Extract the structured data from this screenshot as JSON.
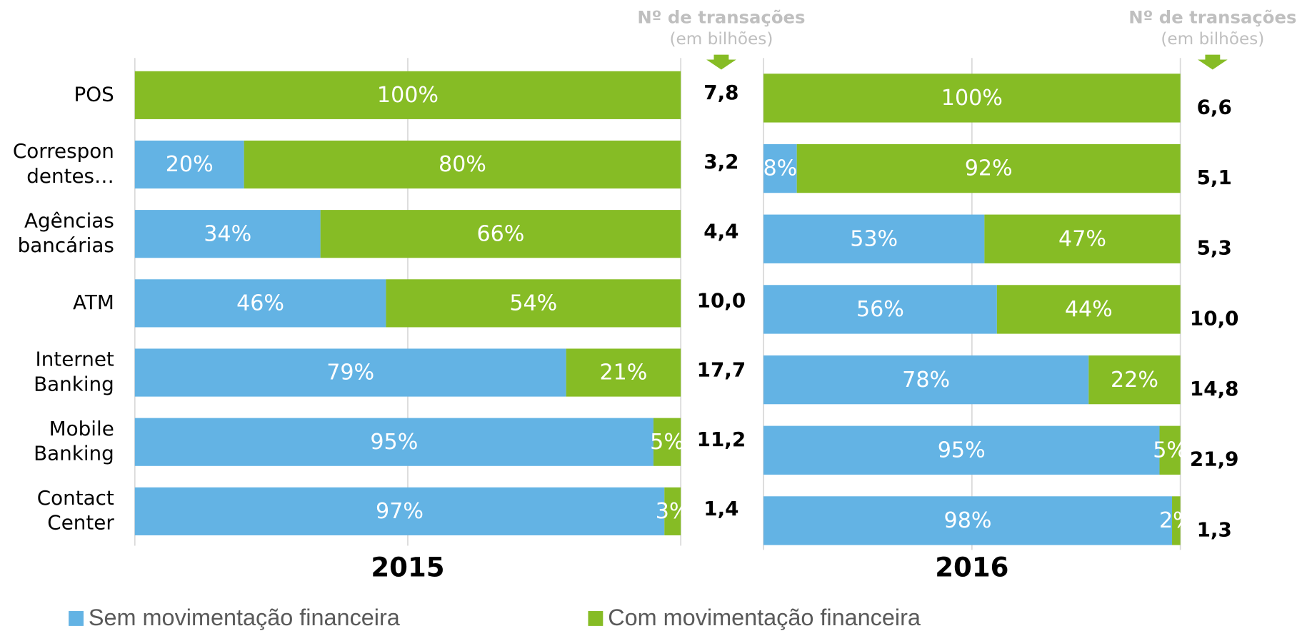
{
  "chart_data": [
    {
      "type": "stacked-bar-horizontal",
      "title": "2015",
      "header": "Nº de transações",
      "subheader": "(em bilhões)",
      "categories": [
        "POS",
        "Correspon\ndentes…",
        "Agências\nbancárias",
        "ATM",
        "Internet\nBanking",
        "Mobile\nBanking",
        "Contact\nCenter"
      ],
      "xlim": [
        0,
        100
      ],
      "xgrid": [
        0,
        50,
        100
      ],
      "series": [
        {
          "name": "Sem movimentação financeira",
          "color": "#63b3e4",
          "values": [
            null,
            20,
            34,
            46,
            79,
            95,
            97
          ],
          "value_labels": [
            null,
            "20%",
            "34%",
            "46%",
            "79%",
            "95%",
            "97%"
          ]
        },
        {
          "name": "Com movimentação financeira",
          "color": "#86bc25",
          "values": [
            100,
            80,
            66,
            54,
            21,
            5,
            3
          ],
          "value_labels": [
            "100%",
            "80%",
            "66%",
            "54%",
            "21%",
            "5%",
            "3%"
          ]
        }
      ],
      "transactions": {
        "values": [
          7.8,
          3.2,
          4.4,
          10.0,
          17.7,
          11.2,
          1.4
        ],
        "value_labels": [
          "7,8",
          "3,2",
          "4,4",
          "10,0",
          "17,7",
          "11,2",
          "1,4"
        ]
      }
    },
    {
      "type": "stacked-bar-horizontal",
      "title": "2016",
      "header": "Nº de transações",
      "subheader": "(em bilhões)",
      "xlim": [
        0,
        100
      ],
      "xgrid": [
        0,
        50,
        100
      ],
      "series": [
        {
          "color": "#63b3e4",
          "values": [
            null,
            8,
            53,
            56,
            78,
            95,
            98
          ],
          "value_labels": [
            null,
            "8%",
            "53%",
            "56%",
            "78%",
            "95%",
            "98%"
          ]
        },
        {
          "color": "#86bc25",
          "values": [
            100,
            92,
            47,
            44,
            22,
            5,
            2
          ],
          "value_labels": [
            "100%",
            "92%",
            "47%",
            "44%",
            "22%",
            "5%",
            "2%"
          ]
        }
      ],
      "transactions": {
        "values": [
          6.6,
          5.1,
          5.3,
          10.0,
          14.8,
          21.9,
          1.3
        ],
        "value_labels": [
          "6,6",
          "5,1",
          "5,3",
          "10,0",
          "14,8",
          "21,9",
          "1,3"
        ]
      }
    }
  ]
}
